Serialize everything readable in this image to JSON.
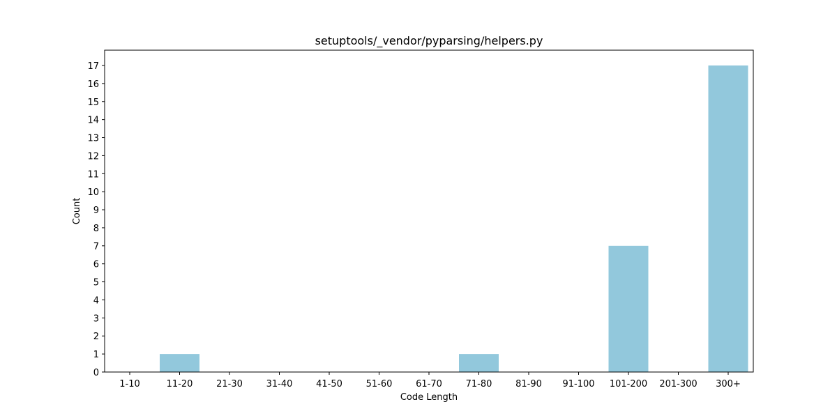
{
  "chart_data": {
    "type": "bar",
    "title": "setuptools/_vendor/pyparsing/helpers.py",
    "xlabel": "Code Length",
    "ylabel": "Count",
    "categories": [
      "1-10",
      "11-20",
      "21-30",
      "31-40",
      "41-50",
      "51-60",
      "61-70",
      "71-80",
      "81-90",
      "91-100",
      "101-200",
      "201-300",
      "300+"
    ],
    "values": [
      0,
      1,
      0,
      0,
      0,
      0,
      0,
      1,
      0,
      0,
      7,
      0,
      17
    ],
    "ylim": [
      0,
      17.85
    ],
    "yticks": [
      0,
      1,
      2,
      3,
      4,
      5,
      6,
      7,
      8,
      9,
      10,
      11,
      12,
      13,
      14,
      15,
      16,
      17
    ],
    "bar_color": "#92c8dc",
    "grid": false,
    "legend": "none"
  }
}
